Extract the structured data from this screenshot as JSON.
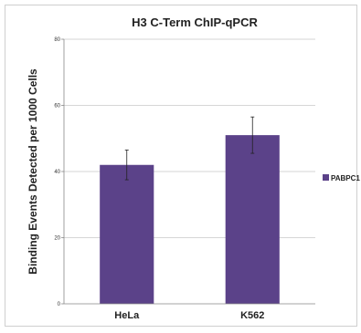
{
  "chart_data": {
    "type": "bar",
    "title": "H3  C-Term ChIP-qPCR",
    "xlabel": "",
    "ylabel": "Binding Events Detected per 1000 Cells",
    "categories": [
      "HeLa",
      "K562"
    ],
    "ylim": [
      0,
      80
    ],
    "yticks": [
      "0",
      "20",
      "40",
      "60",
      "80"
    ],
    "series": [
      {
        "name": "PABPC1",
        "values": [
          42,
          51
        ],
        "errors": [
          4.5,
          5.5
        ],
        "color": "#5b4289"
      }
    ],
    "grid": true,
    "legend_position": "right"
  }
}
